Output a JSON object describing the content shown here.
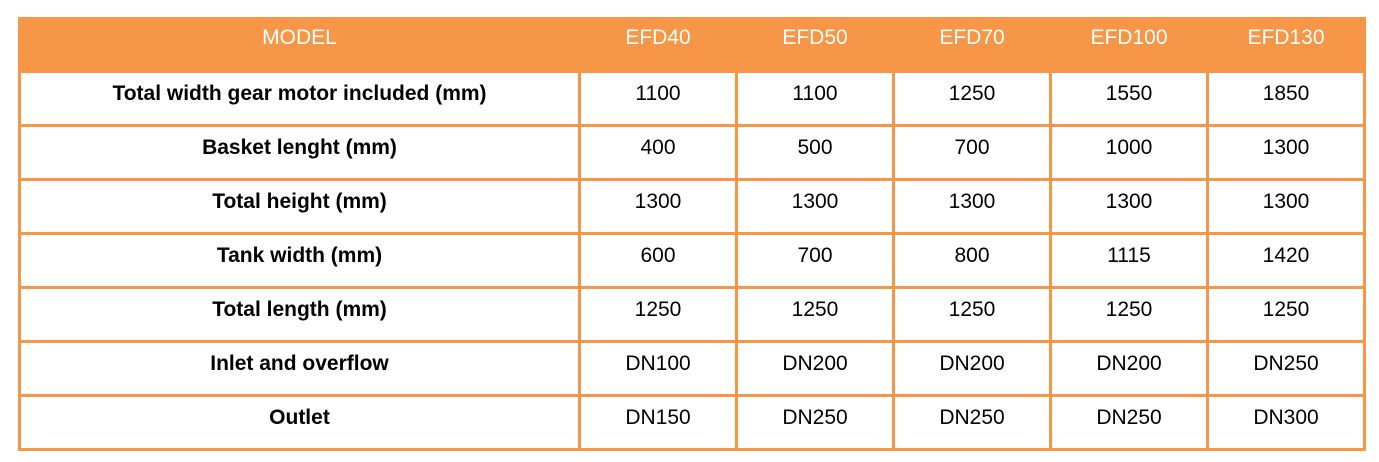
{
  "table": {
    "header": [
      "MODEL",
      "EFD40",
      "EFD50",
      "EFD70",
      "EFD100",
      "EFD130"
    ],
    "rows": [
      [
        "Total width gear motor included (mm)",
        "1100",
        "1100",
        "1250",
        "1550",
        "1850"
      ],
      [
        "Basket lenght (mm)",
        "400",
        "500",
        "700",
        "1000",
        "1300"
      ],
      [
        "Total height (mm)",
        "1300",
        "1300",
        "1300",
        "1300",
        "1300"
      ],
      [
        "Tank width (mm)",
        "600",
        "700",
        "800",
        "1115",
        "1420"
      ],
      [
        "Total length (mm)",
        "1250",
        "1250",
        "1250",
        "1250",
        "1250"
      ],
      [
        "Inlet and overflow",
        "DN100",
        "DN200",
        "DN200",
        "DN200",
        "DN250"
      ],
      [
        "Outlet",
        "DN150",
        "DN250",
        "DN250",
        "DN250",
        "DN300"
      ]
    ]
  }
}
